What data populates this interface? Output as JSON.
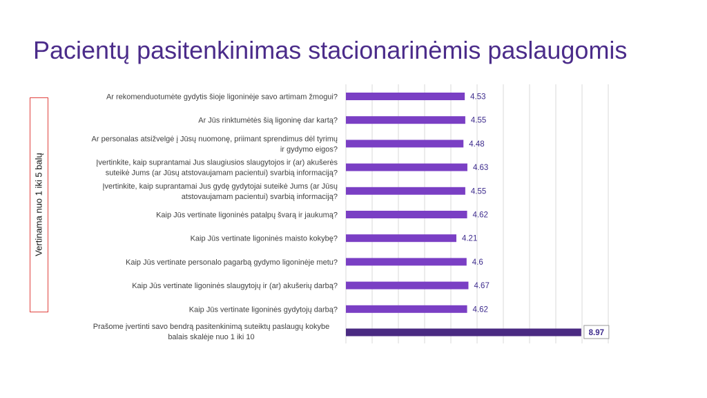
{
  "title": "Pacientų pasitenkinimas stacionarinėmis paslaugomis",
  "side_label": "Vertinama nuo 1 iki 5 balų",
  "colors": {
    "title": "#4b2c8a",
    "bar": "#7a3fc4",
    "bar_overall": "#4a2a82",
    "value_text": "#3c2a8c",
    "side_box_border": "#e0403c",
    "grid": "#d9d9d9"
  },
  "chart_data": {
    "type": "bar",
    "orientation": "horizontal",
    "grid": true,
    "xlim": [
      0,
      10
    ],
    "categories": [
      [
        "Ar rekomenduotumėte gydytis šioje ligoninėje savo artimam žmogui?"
      ],
      [
        "Ar Jūs rinktumėtės šią ligoninę dar kartą?"
      ],
      [
        "Ar personalas atsižvelgė į Jūsų nuomonę, priimant sprendimus dėl tyrimų",
        "ir gydymo eigos?"
      ],
      [
        "Įvertinkite, kaip suprantamai Jus slaugiusios slaugytojos ir (ar) akušerės",
        "suteikė Jums (ar Jūsų atstovaujamam pacientui) svarbią informaciją?"
      ],
      [
        "Įvertinkite, kaip suprantamai Jus gydę gydytojai suteikė Jums (ar Jūsų",
        "atstovaujamam pacientui) svarbią informaciją?"
      ],
      [
        "Kaip Jūs vertinate ligoninės patalpų švarą ir jaukumą?"
      ],
      [
        "Kaip Jūs vertinate ligoninės maisto kokybę?"
      ],
      [
        "Kaip Jūs vertinate personalo pagarbą gydymo ligoninėje metu?"
      ],
      [
        "Kaip Jūs vertinate ligoninės slaugytojų ir (ar) akušerių darbą?"
      ],
      [
        "Kaip Jūs vertinate ligoninės gydytojų darbą?"
      ],
      [
        "Prašome įvertinti savo bendrą pasitenkinimą suteiktų paslaugų kokybe",
        "balais skalėje nuo 1 iki 10"
      ]
    ],
    "values": [
      4.53,
      4.55,
      4.48,
      4.63,
      4.55,
      4.62,
      4.21,
      4.6,
      4.67,
      4.62,
      8.97
    ],
    "value_labels": [
      "4.53",
      "4.55",
      "4.48",
      "4.63",
      "4.55",
      "4.62",
      "4.21",
      "4.6",
      "4.67",
      "4.62",
      "8.97"
    ]
  }
}
